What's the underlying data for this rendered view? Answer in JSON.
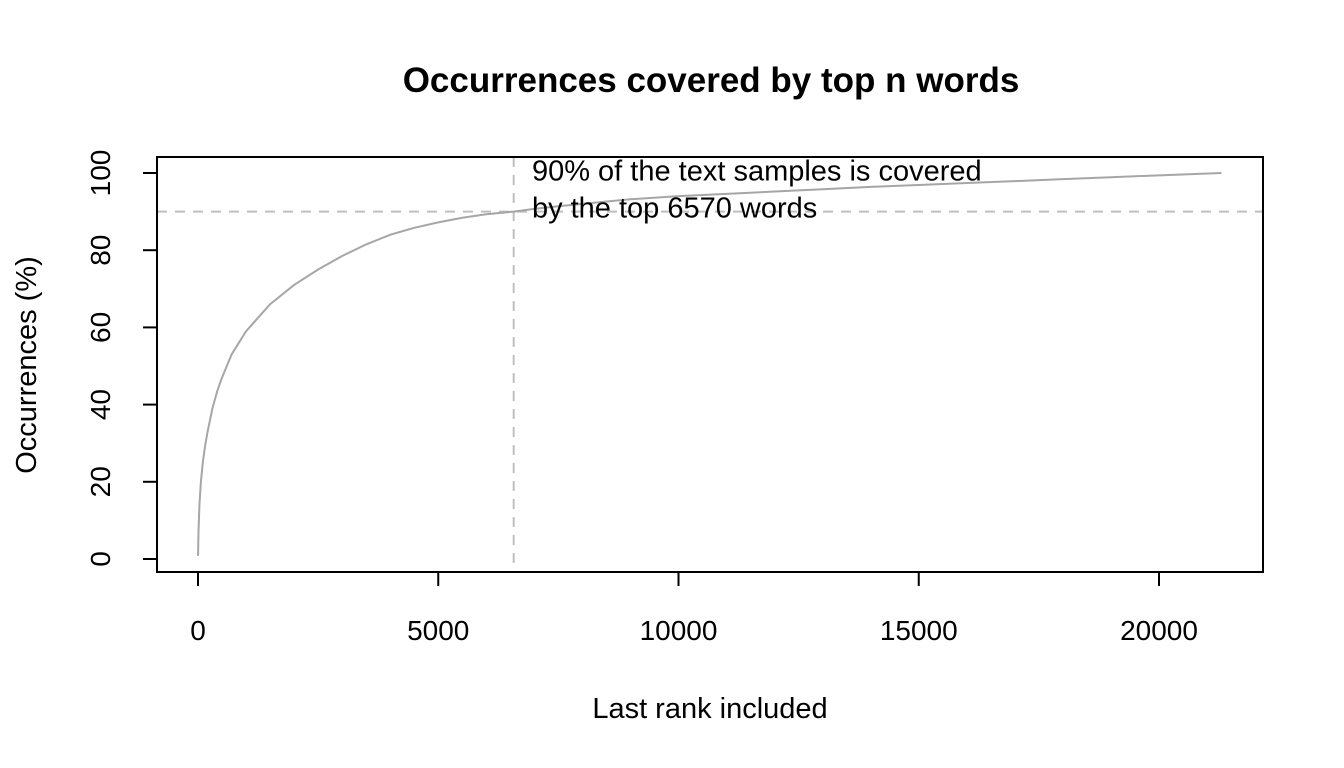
{
  "chart_data": {
    "type": "line",
    "title": "Occurrences covered by top n words",
    "xlabel": "Last rank included",
    "ylabel": "Occurrences (%)",
    "xlim": [
      0,
      21300
    ],
    "ylim": [
      0,
      100
    ],
    "xticks": [
      0,
      5000,
      10000,
      15000,
      20000
    ],
    "yticks": [
      0,
      20,
      40,
      60,
      80,
      100
    ],
    "grid": false,
    "line_color": "#a6a6a6",
    "reference_color": "#bfbfbf",
    "series": [
      {
        "x": [
          1,
          10,
          30,
          60,
          100,
          150,
          200,
          300,
          400,
          500,
          700,
          1000,
          1500,
          2000,
          2500,
          3000,
          3500,
          4000,
          4500,
          5000,
          5500,
          6000,
          6570,
          7000,
          7500,
          8000,
          9000,
          10000,
          11000,
          12000,
          13000,
          14000,
          15000,
          16000,
          17000,
          18000,
          19000,
          20000,
          21300
        ],
        "y": [
          0.8,
          7,
          14,
          20,
          25,
          29.5,
          33,
          39,
          43.5,
          47,
          53,
          59,
          66,
          71,
          75,
          78.5,
          81.5,
          84,
          85.8,
          87.2,
          88.4,
          89.3,
          90,
          90.7,
          91.4,
          92,
          93.2,
          94,
          94.6,
          95.2,
          95.8,
          96.4,
          96.9,
          97.4,
          97.9,
          98.4,
          98.9,
          99.4,
          100
        ]
      }
    ],
    "reference_lines": {
      "horizontal_y": 90,
      "vertical_x": 6570
    },
    "annotation": {
      "line1": "90% of the text samples is covered",
      "line2": "by the top 6570 words",
      "x": 6950,
      "y": 98
    }
  }
}
